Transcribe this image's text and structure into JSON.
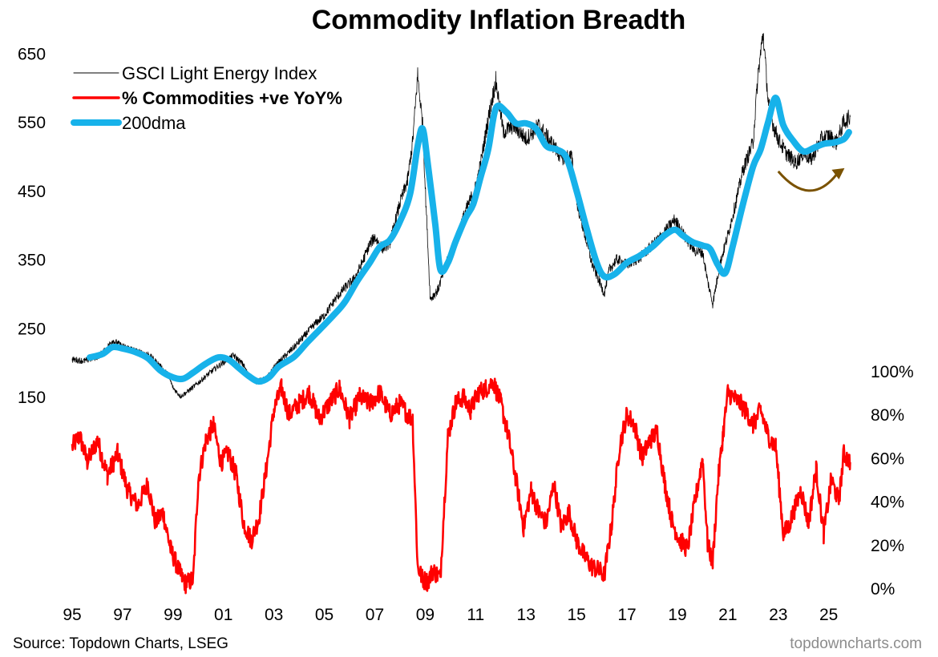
{
  "colors": {
    "energy": "#000000",
    "breadth": "#ff0000",
    "dma": "#17b2ea",
    "arrow": "#7a5200",
    "watermark": "#8c8c8c"
  },
  "chart_data": {
    "type": "line",
    "title": "Commodity Inflation Breadth",
    "source": "Source: Topdown Charts, LSEG",
    "watermark": "topdowncharts.com",
    "x_axis": {
      "range": [
        1995,
        2025.9
      ],
      "tick_values": [
        1995,
        1997,
        1999,
        2001,
        2003,
        2005,
        2007,
        2009,
        2011,
        2013,
        2015,
        2017,
        2019,
        2021,
        2023,
        2025
      ],
      "tick_labels": [
        "95",
        "97",
        "99",
        "01",
        "03",
        "05",
        "07",
        "09",
        "11",
        "13",
        "15",
        "17",
        "19",
        "21",
        "23",
        "25"
      ]
    },
    "left_axis": {
      "range": [
        150,
        710
      ],
      "tick_values": [
        150,
        250,
        350,
        450,
        550,
        650
      ],
      "tick_labels": [
        "150",
        "250",
        "350",
        "450",
        "550",
        "650"
      ]
    },
    "right_axis": {
      "range": [
        0,
        100
      ],
      "tick_values": [
        0,
        20,
        40,
        60,
        80,
        100
      ],
      "tick_labels": [
        "0%",
        "20%",
        "40%",
        "60%",
        "80%",
        "100%"
      ]
    },
    "legend": {
      "position": "top-left",
      "items": [
        {
          "label": "GSCI Light Energy Index",
          "series": "energy"
        },
        {
          "label": "% Commodities +ve YoY%",
          "series": "breadth"
        },
        {
          "label": "200dma",
          "series": "dma"
        }
      ]
    },
    "annotation": {
      "type": "curved-arrow",
      "from_x": 2023.0,
      "to_x": 2025.5,
      "y": 478
    },
    "series": [
      {
        "key": "energy",
        "name": "GSCI Light Energy Index",
        "axis": "left",
        "x": [
          1995.0,
          1995.5,
          1996.0,
          1996.3,
          1996.6,
          1997.0,
          1997.3,
          1997.6,
          1998.0,
          1998.4,
          1998.8,
          1999.0,
          1999.3,
          1999.6,
          2000.0,
          2000.5,
          2001.0,
          2001.4,
          2001.8,
          2002.0,
          2002.3,
          2002.7,
          2003.0,
          2003.3,
          2003.8,
          2004.2,
          2004.6,
          2005.0,
          2005.4,
          2005.8,
          2006.2,
          2006.5,
          2006.8,
          2007.0,
          2007.3,
          2007.6,
          2008.0,
          2008.3,
          2008.5,
          2008.7,
          2008.9,
          2009.0,
          2009.2,
          2009.5,
          2009.8,
          2010.2,
          2010.6,
          2011.0,
          2011.2,
          2011.5,
          2011.8,
          2012.1,
          2012.5,
          2013.0,
          2013.5,
          2014.0,
          2014.4,
          2014.8,
          2015.0,
          2015.3,
          2015.6,
          2015.9,
          2016.1,
          2016.3,
          2016.6,
          2017.0,
          2017.5,
          2018.0,
          2018.5,
          2018.9,
          2019.3,
          2019.7,
          2020.0,
          2020.2,
          2020.4,
          2020.7,
          2021.0,
          2021.3,
          2021.6,
          2022.0,
          2022.2,
          2022.4,
          2022.6,
          2022.8,
          2023.0,
          2023.3,
          2023.7,
          2024.0,
          2024.3,
          2024.7,
          2025.0,
          2025.3,
          2025.6,
          2025.85
        ],
        "values": [
          204,
          202,
          208,
          217,
          232,
          223,
          220,
          215,
          212,
          198,
          182,
          163,
          150,
          158,
          170,
          186,
          200,
          210,
          196,
          180,
          172,
          176,
          192,
          204,
          222,
          238,
          255,
          268,
          290,
          308,
          322,
          345,
          372,
          382,
          366,
          374,
          432,
          465,
          520,
          618,
          545,
          455,
          292,
          305,
          340,
          378,
          420,
          455,
          490,
          555,
          610,
          535,
          545,
          525,
          545,
          520,
          498,
          500,
          435,
          390,
          345,
          318,
          300,
          335,
          350,
          342,
          352,
          370,
          390,
          408,
          382,
          362,
          360,
          318,
          285,
          345,
          385,
          430,
          480,
          520,
          620,
          680,
          580,
          545,
          525,
          505,
          490,
          505,
          495,
          525,
          530,
          520,
          550,
          557
        ]
      },
      {
        "key": "dma",
        "name": "200dma",
        "axis": "left",
        "x": [
          1995.7,
          1996.2,
          1996.6,
          1997.0,
          1997.5,
          1998.0,
          1998.5,
          1999.0,
          1999.4,
          1999.8,
          2000.3,
          2000.8,
          2001.2,
          2001.6,
          2002.0,
          2002.4,
          2002.8,
          2003.2,
          2003.8,
          2004.3,
          2004.8,
          2005.3,
          2005.8,
          2006.3,
          2006.8,
          2007.2,
          2007.6,
          2008.0,
          2008.4,
          2008.7,
          2008.9,
          2009.1,
          2009.4,
          2009.6,
          2009.9,
          2010.2,
          2010.6,
          2010.9,
          2011.2,
          2011.5,
          2011.8,
          2012.2,
          2012.6,
          2013.0,
          2013.4,
          2013.8,
          2014.2,
          2014.6,
          2015.0,
          2015.4,
          2015.8,
          2016.1,
          2016.5,
          2017.0,
          2017.5,
          2018.0,
          2018.5,
          2018.9,
          2019.2,
          2019.6,
          2020.0,
          2020.3,
          2020.6,
          2020.9,
          2021.2,
          2021.6,
          2022.0,
          2022.3,
          2022.6,
          2022.9,
          2023.2,
          2023.6,
          2024.0,
          2024.4,
          2024.8,
          2025.2,
          2025.6,
          2025.8
        ],
        "values": [
          207,
          212,
          222,
          220,
          215,
          206,
          188,
          178,
          176,
          185,
          198,
          207,
          204,
          192,
          180,
          172,
          178,
          194,
          208,
          228,
          247,
          266,
          287,
          318,
          345,
          368,
          378,
          405,
          445,
          515,
          540,
          490,
          400,
          335,
          345,
          375,
          410,
          430,
          470,
          510,
          570,
          565,
          548,
          548,
          540,
          515,
          510,
          498,
          450,
          395,
          345,
          325,
          328,
          345,
          355,
          368,
          385,
          393,
          385,
          375,
          370,
          365,
          342,
          330,
          370,
          430,
          485,
          510,
          550,
          585,
          545,
          522,
          507,
          512,
          518,
          520,
          525,
          535
        ]
      },
      {
        "key": "breadth",
        "name": "% Commodities +ve YoY%",
        "axis": "right",
        "x": [
          1995.0,
          1995.3,
          1995.6,
          1996.0,
          1996.4,
          1996.8,
          1997.2,
          1997.6,
          1998.0,
          1998.3,
          1998.6,
          1998.9,
          1999.1,
          1999.3,
          1999.5,
          1999.8,
          2000.0,
          2000.3,
          2000.6,
          2000.9,
          2001.2,
          2001.5,
          2001.8,
          2002.1,
          2002.4,
          2002.7,
          2003.0,
          2003.3,
          2003.6,
          2004.0,
          2004.4,
          2004.8,
          2005.2,
          2005.6,
          2006.0,
          2006.4,
          2006.8,
          2007.2,
          2007.6,
          2008.0,
          2008.3,
          2008.5,
          2008.7,
          2008.9,
          2009.1,
          2009.3,
          2009.6,
          2009.9,
          2010.2,
          2010.5,
          2010.8,
          2011.1,
          2011.4,
          2011.7,
          2012.0,
          2012.3,
          2012.6,
          2012.9,
          2013.2,
          2013.5,
          2013.8,
          2014.1,
          2014.4,
          2014.7,
          2015.0,
          2015.3,
          2015.6,
          2015.9,
          2016.1,
          2016.4,
          2016.7,
          2017.0,
          2017.3,
          2017.6,
          2017.9,
          2018.2,
          2018.5,
          2018.8,
          2019.1,
          2019.4,
          2019.7,
          2020.0,
          2020.2,
          2020.4,
          2020.6,
          2020.8,
          2021.0,
          2021.2,
          2021.5,
          2021.8,
          2022.0,
          2022.3,
          2022.6,
          2022.9,
          2023.2,
          2023.4,
          2023.6,
          2023.9,
          2024.2,
          2024.5,
          2024.8,
          2025.1,
          2025.4,
          2025.6,
          2025.85
        ],
        "values": [
          65,
          70,
          58,
          68,
          52,
          62,
          45,
          38,
          48,
          30,
          35,
          18,
          12,
          6,
          2,
          4,
          50,
          68,
          75,
          58,
          62,
          52,
          30,
          22,
          32,
          55,
          82,
          92,
          80,
          85,
          90,
          78,
          85,
          92,
          78,
          88,
          85,
          90,
          80,
          85,
          80,
          78,
          10,
          4,
          3,
          8,
          5,
          70,
          85,
          88,
          82,
          90,
          92,
          95,
          85,
          70,
          50,
          28,
          45,
          35,
          30,
          48,
          28,
          35,
          22,
          15,
          10,
          8,
          6,
          30,
          65,
          80,
          75,
          60,
          68,
          72,
          48,
          30,
          22,
          18,
          40,
          60,
          20,
          12,
          48,
          70,
          90,
          88,
          85,
          80,
          75,
          82,
          70,
          65,
          25,
          28,
          35,
          45,
          30,
          55,
          25,
          50,
          40,
          62,
          58
        ]
      }
    ]
  }
}
